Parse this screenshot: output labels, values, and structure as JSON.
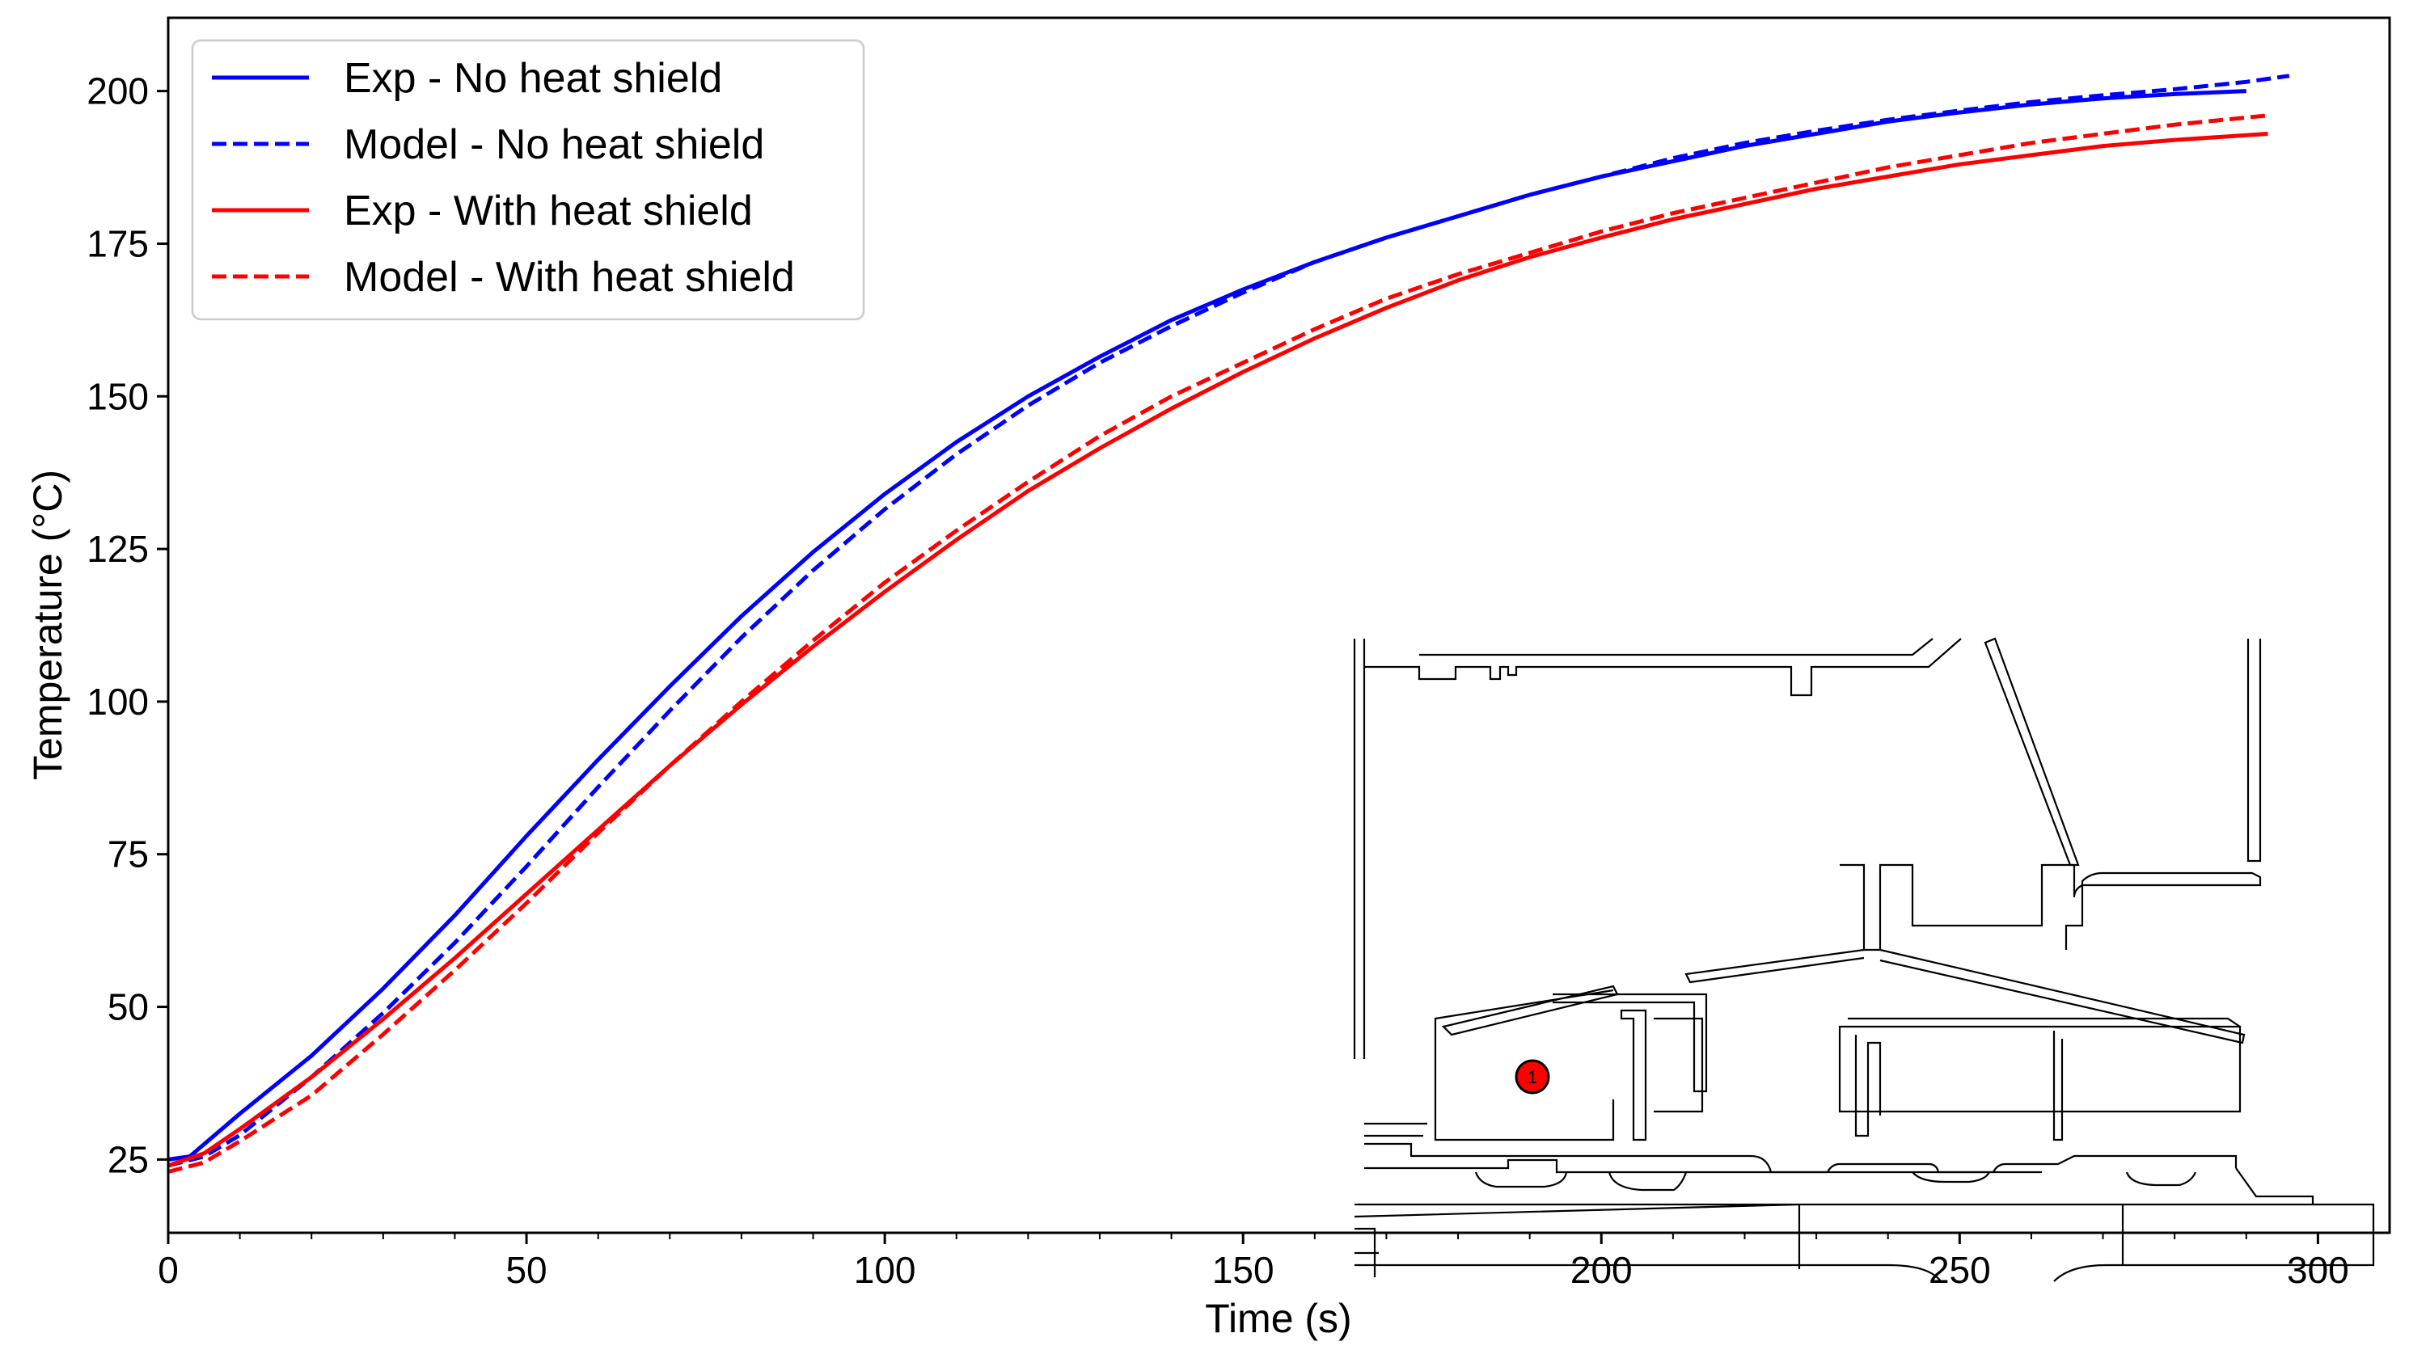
{
  "chart_data": {
    "type": "line",
    "title": "",
    "xlabel": "Time (s)",
    "ylabel": "Temperature (°C)",
    "xlim": [
      0,
      310
    ],
    "ylim": [
      13,
      212
    ],
    "xticks": [
      0,
      50,
      100,
      150,
      200,
      250,
      300
    ],
    "yticks": [
      25,
      50,
      75,
      100,
      125,
      150,
      175,
      200
    ],
    "xtick_labels": [
      "0",
      "50",
      "100",
      "150",
      "200",
      "250",
      "300"
    ],
    "ytick_labels": [
      "25",
      "50",
      "75",
      "100",
      "125",
      "150",
      "175",
      "200"
    ],
    "legend_position": "top-left",
    "grid": false,
    "series": [
      {
        "name": "Exp - No heat shield",
        "color": "#0000ff",
        "style": "solid",
        "x": [
          0,
          3,
          5,
          10,
          20,
          30,
          40,
          50,
          60,
          70,
          80,
          90,
          100,
          110,
          120,
          130,
          140,
          150,
          160,
          170,
          180,
          190,
          200,
          210,
          220,
          230,
          240,
          250,
          260,
          270,
          280,
          290
        ],
        "y": [
          25,
          25.5,
          27.5,
          32.5,
          42,
          53,
          65,
          78,
          90.5,
          102.5,
          114,
          124.5,
          134,
          142.5,
          150,
          156.5,
          162.5,
          167.5,
          172,
          176,
          179.5,
          183,
          186,
          188.5,
          191,
          193,
          195,
          196.5,
          197.8,
          198.8,
          199.5,
          200
        ]
      },
      {
        "name": "Model - No heat shield",
        "color": "#0000ff",
        "style": "dashed",
        "x": [
          0,
          5,
          10,
          20,
          30,
          40,
          50,
          60,
          70,
          80,
          90,
          100,
          110,
          120,
          130,
          140,
          150,
          160,
          170,
          180,
          190,
          200,
          210,
          220,
          230,
          240,
          250,
          260,
          270,
          280,
          290,
          296
        ],
        "y": [
          24,
          25.5,
          29,
          38.5,
          49,
          60.5,
          73,
          86,
          98.5,
          110.5,
          121.5,
          131.5,
          140.5,
          148.5,
          155.5,
          161.5,
          167,
          172,
          176,
          179.5,
          183,
          186,
          189,
          191.5,
          193.5,
          195.3,
          196.8,
          198.2,
          199.3,
          200.3,
          201.5,
          202.5
        ]
      },
      {
        "name": "Exp - With heat shield",
        "color": "#ff0000",
        "style": "solid",
        "x": [
          0,
          5,
          10,
          20,
          30,
          40,
          50,
          60,
          70,
          80,
          90,
          100,
          110,
          120,
          130,
          140,
          150,
          160,
          170,
          180,
          190,
          200,
          210,
          220,
          230,
          240,
          250,
          260,
          270,
          280,
          293
        ],
        "y": [
          24,
          26,
          30,
          38.5,
          48,
          58,
          68.5,
          79,
          89.5,
          99.5,
          109,
          118,
          126.5,
          134.5,
          141.5,
          148,
          154,
          159.5,
          164.5,
          169,
          172.8,
          176,
          179,
          181.5,
          184,
          186,
          188,
          189.5,
          191,
          192,
          193
        ]
      },
      {
        "name": "Model - With heat shield",
        "color": "#ff0000",
        "style": "dashed",
        "x": [
          0,
          5,
          10,
          20,
          30,
          40,
          50,
          60,
          70,
          80,
          90,
          100,
          110,
          120,
          130,
          140,
          150,
          160,
          170,
          180,
          190,
          200,
          210,
          220,
          230,
          240,
          250,
          260,
          270,
          280,
          293
        ],
        "y": [
          23,
          24.5,
          28,
          35.5,
          45.5,
          56,
          67,
          78.5,
          89.5,
          100,
          110,
          119.5,
          128,
          136,
          143.5,
          150,
          155.5,
          161,
          166,
          170,
          173.5,
          177,
          180,
          182.5,
          185,
          187.5,
          189.5,
          191.5,
          193,
          194.5,
          196
        ]
      }
    ]
  },
  "inset": {
    "marker_label": "1",
    "marker_color": "#ff0000"
  }
}
